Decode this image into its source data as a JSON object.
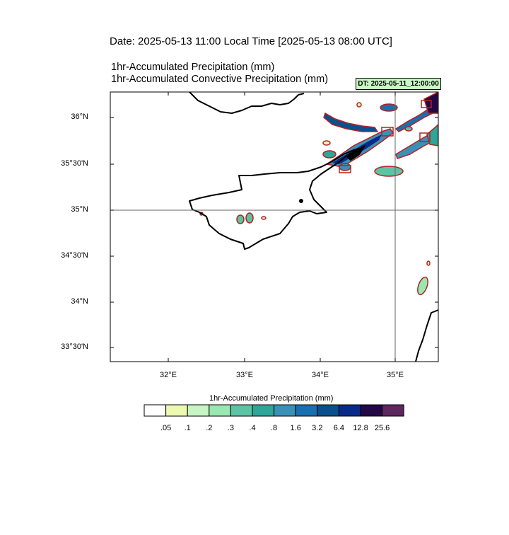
{
  "titles": {
    "date": "Date: 2025-05-13  11:00 Local Time [2025-05-13  08:00 UTC]",
    "precip": "1hr-Accumulated Precipitation   (mm)",
    "convective": "1hr-Accumulated Convective Precipitation   (mm)",
    "dt_badge": "DT: 2025-05-11_12:00:00"
  },
  "map": {
    "lat_labels": [
      "36°N",
      "35°30'N",
      "35°N",
      "34°30'N",
      "34°N",
      "33°30'N"
    ],
    "lon_labels": [
      "32°E",
      "33°E",
      "34°E",
      "35°E"
    ],
    "reference_lines": [
      "35°N",
      "35°E"
    ]
  },
  "colorbar": {
    "title": "1hr-Accumulated Precipitation  (mm)",
    "ticks": [
      ".05",
      ".1",
      ".2",
      ".3",
      ".4",
      ".8",
      "1.6",
      "3.2",
      "6.4",
      "12.8",
      "25.6"
    ],
    "colors": [
      "#ffffff",
      "#edf8b1",
      "#c7f5c5",
      "#99e8b1",
      "#5cc4a4",
      "#2ea69a",
      "#3a91b8",
      "#1a6fb0",
      "#0b4f8c",
      "#0a2a8a",
      "#240845",
      "#5e2760"
    ]
  },
  "colors": {
    "coast": "#000000",
    "contour_outline": "#b22222",
    "frame": "#000000"
  }
}
